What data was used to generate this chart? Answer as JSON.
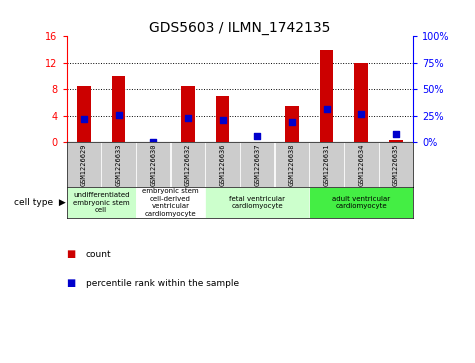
{
  "title": "GDS5603 / ILMN_1742135",
  "samples": [
    "GSM1226629",
    "GSM1226633",
    "GSM1226630",
    "GSM1226632",
    "GSM1226636",
    "GSM1226637",
    "GSM1226638",
    "GSM1226631",
    "GSM1226634",
    "GSM1226635"
  ],
  "counts": [
    8.5,
    10.0,
    0.05,
    8.5,
    7.0,
    0.05,
    5.5,
    14.0,
    12.0,
    0.4
  ],
  "percentile_ranks": [
    22,
    26,
    0.5,
    23,
    21,
    6,
    19,
    31,
    27,
    8
  ],
  "ylim_left": [
    0,
    16
  ],
  "ylim_right": [
    0,
    100
  ],
  "yticks_left": [
    0,
    4,
    8,
    12,
    16
  ],
  "yticks_right": [
    0,
    25,
    50,
    75,
    100
  ],
  "cell_type_groups": [
    {
      "label": "undifferentiated\nembryonic stem\ncell",
      "start": 0,
      "end": 2,
      "color": "#ccffcc"
    },
    {
      "label": "embryonic stem\ncell-derived\nventricular\ncardiomyocyte",
      "start": 2,
      "end": 4,
      "color": "#ffffff"
    },
    {
      "label": "fetal ventricular\ncardiomyocyte",
      "start": 4,
      "end": 7,
      "color": "#ccffcc"
    },
    {
      "label": "adult ventricular\ncardiomyocyte",
      "start": 7,
      "end": 10,
      "color": "#44ee44"
    }
  ],
  "bar_color": "#cc0000",
  "dot_color": "#0000cc",
  "bar_width": 0.4,
  "dot_size": 18,
  "background_color": "#ffffff",
  "sample_bg_color": "#cccccc"
}
